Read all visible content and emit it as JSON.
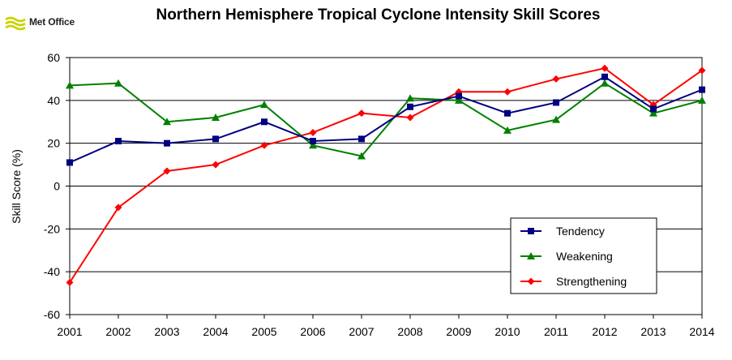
{
  "logo": {
    "text": "Met Office"
  },
  "chart_data": {
    "type": "line",
    "title": "Northern Hemisphere Tropical Cyclone Intensity  Skill Scores",
    "xlabel": "",
    "ylabel": "Skill Score (%)",
    "x": [
      "2001",
      "2002",
      "2003",
      "2004",
      "2005",
      "2006",
      "2007",
      "2008",
      "2009",
      "2010",
      "2011",
      "2012",
      "2013",
      "2014"
    ],
    "ylim": [
      -60,
      60
    ],
    "yticks": [
      -60,
      -40,
      -20,
      0,
      20,
      40,
      60
    ],
    "grid": "horizontal",
    "legend_position": "bottom-right",
    "series": [
      {
        "name": "Tendency",
        "color": "#000080",
        "marker": "square",
        "values": [
          11,
          21,
          20,
          22,
          30,
          21,
          22,
          37,
          42,
          34,
          39,
          51,
          36,
          45
        ]
      },
      {
        "name": "Weakening",
        "color": "#008000",
        "marker": "triangle",
        "values": [
          47,
          48,
          30,
          32,
          38,
          19,
          14,
          41,
          40,
          26,
          31,
          48,
          34,
          40
        ]
      },
      {
        "name": "Strengthening",
        "color": "#ff0000",
        "marker": "diamond",
        "values": [
          -45,
          -10,
          7,
          10,
          19,
          25,
          34,
          32,
          44,
          44,
          50,
          55,
          38,
          54
        ]
      }
    ]
  }
}
